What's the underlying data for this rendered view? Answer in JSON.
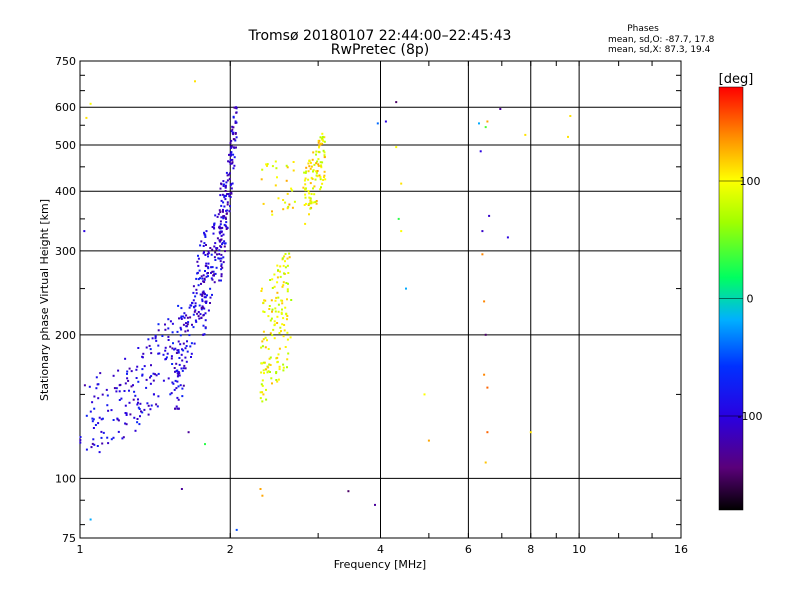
{
  "header": {
    "title_line1": "Tromsø 20180107 22:44:00–22:45:43",
    "title_line2": "RwPretec (8p)",
    "phases_title": "Phases",
    "phases_o": "mean, sd,O: -87.7, 17.8",
    "phases_x": "mean, sd,X:  87.3, 19.4"
  },
  "chart_data": {
    "type": "scatter",
    "xlabel": "Frequency [MHz]",
    "ylabel": "Stationary phase Virtual Height [km]",
    "xscale": "log",
    "yscale": "log",
    "xlim": [
      1,
      16
    ],
    "ylim": [
      75,
      750
    ],
    "x_ticks": [
      1,
      2,
      4,
      6,
      8,
      10,
      16
    ],
    "x_tick_labels": [
      "1",
      "2",
      "4",
      "6",
      "8",
      "10",
      "16"
    ],
    "y_ticks": [
      75,
      100,
      200,
      300,
      400,
      500,
      600,
      750
    ],
    "y_tick_labels": [
      "75",
      "100",
      "200",
      "300",
      "400",
      "500",
      "600",
      "750"
    ],
    "grid": true,
    "colorbar": {
      "label": "[deg]",
      "range": [
        -180,
        180
      ],
      "ticks": [
        -100,
        0,
        100
      ],
      "tick_labels": [
        "-100",
        "0",
        "100"
      ],
      "colormap": "rainbow"
    },
    "groups": [
      {
        "f_range": [
          1.0,
          1.3
        ],
        "h_range": [
          110,
          180
        ],
        "phase": -100,
        "trend": 0.3,
        "count": 90
      },
      {
        "f_range": [
          1.3,
          1.6
        ],
        "h_range": [
          130,
          230
        ],
        "phase": -95,
        "trend": 0.4,
        "count": 110
      },
      {
        "f_range": [
          1.55,
          1.8
        ],
        "h_range": [
          140,
          330
        ],
        "phase": -98,
        "trend": 0.8,
        "count": 130
      },
      {
        "f_range": [
          1.75,
          1.95
        ],
        "h_range": [
          200,
          420
        ],
        "phase": -102,
        "trend": 0.8,
        "count": 120
      },
      {
        "f_range": [
          1.9,
          2.06
        ],
        "h_range": [
          260,
          600
        ],
        "phase": -105,
        "trend": 0.9,
        "count": 130
      },
      {
        "f_range": [
          2.3,
          2.65
        ],
        "h_range": [
          145,
          300
        ],
        "phase": 95,
        "trend": 0.3,
        "count": 150
      },
      {
        "f_range": [
          2.3,
          2.7
        ],
        "h_range": [
          350,
          480
        ],
        "phase": 105,
        "trend": 0.2,
        "count": 30
      },
      {
        "f_range": [
          2.8,
          3.1
        ],
        "h_range": [
          340,
          530
        ],
        "phase": 100,
        "trend": 0.5,
        "count": 110
      }
    ],
    "sparse_points": [
      {
        "x": 1.03,
        "y": 570,
        "phase": 110
      },
      {
        "x": 1.05,
        "y": 610,
        "phase": 100
      },
      {
        "x": 1.05,
        "y": 82,
        "phase": -20
      },
      {
        "x": 1.02,
        "y": 330,
        "phase": -100
      },
      {
        "x": 1.6,
        "y": 95,
        "phase": -130
      },
      {
        "x": 1.65,
        "y": 125,
        "phase": -130
      },
      {
        "x": 1.7,
        "y": 680,
        "phase": 110
      },
      {
        "x": 1.78,
        "y": 118,
        "phase": 30
      },
      {
        "x": 2.06,
        "y": 78,
        "phase": -50
      },
      {
        "x": 2.3,
        "y": 95,
        "phase": 130
      },
      {
        "x": 2.32,
        "y": 92,
        "phase": 130
      },
      {
        "x": 3.45,
        "y": 94,
        "phase": -150
      },
      {
        "x": 3.9,
        "y": 88,
        "phase": -130
      },
      {
        "x": 3.95,
        "y": 555,
        "phase": -40
      },
      {
        "x": 4.1,
        "y": 560,
        "phase": -100
      },
      {
        "x": 4.3,
        "y": 615,
        "phase": -150
      },
      {
        "x": 4.3,
        "y": 495,
        "phase": 100
      },
      {
        "x": 4.4,
        "y": 415,
        "phase": 110
      },
      {
        "x": 4.35,
        "y": 350,
        "phase": 30
      },
      {
        "x": 4.4,
        "y": 330,
        "phase": 100
      },
      {
        "x": 4.5,
        "y": 250,
        "phase": -20
      },
      {
        "x": 4.9,
        "y": 150,
        "phase": 100
      },
      {
        "x": 5.0,
        "y": 120,
        "phase": 130
      },
      {
        "x": 6.3,
        "y": 555,
        "phase": -20
      },
      {
        "x": 6.35,
        "y": 485,
        "phase": -100
      },
      {
        "x": 6.4,
        "y": 330,
        "phase": -110
      },
      {
        "x": 6.4,
        "y": 295,
        "phase": 140
      },
      {
        "x": 6.45,
        "y": 235,
        "phase": 140
      },
      {
        "x": 6.5,
        "y": 200,
        "phase": -150
      },
      {
        "x": 6.45,
        "y": 165,
        "phase": 140
      },
      {
        "x": 6.55,
        "y": 155,
        "phase": 150
      },
      {
        "x": 6.55,
        "y": 125,
        "phase": 150
      },
      {
        "x": 6.5,
        "y": 108,
        "phase": 120
      },
      {
        "x": 6.5,
        "y": 545,
        "phase": 40
      },
      {
        "x": 6.55,
        "y": 560,
        "phase": 130
      },
      {
        "x": 6.6,
        "y": 355,
        "phase": -110
      },
      {
        "x": 6.95,
        "y": 595,
        "phase": -130
      },
      {
        "x": 7.2,
        "y": 320,
        "phase": -100
      },
      {
        "x": 7.8,
        "y": 525,
        "phase": 110
      },
      {
        "x": 8.0,
        "y": 125,
        "phase": 110
      },
      {
        "x": 9.6,
        "y": 575,
        "phase": 110
      },
      {
        "x": 9.5,
        "y": 520,
        "phase": 110
      }
    ]
  }
}
